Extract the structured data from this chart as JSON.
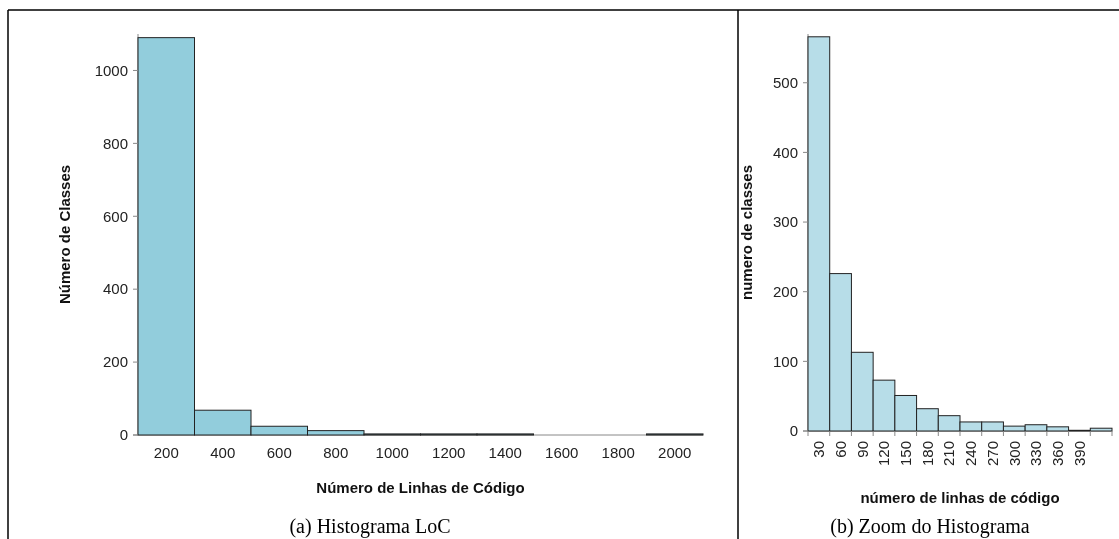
{
  "chart_data": [
    {
      "type": "bar",
      "title": "(a) Histograma LoC",
      "xlabel": "Número de Linhas de Código",
      "ylabel": "Número de Classes",
      "categories": [
        "200",
        "400",
        "600",
        "800",
        "1000",
        "1200",
        "1400",
        "1600",
        "1800",
        "2000"
      ],
      "values": [
        1090,
        68,
        24,
        12,
        3,
        3,
        3,
        0,
        0,
        3
      ],
      "color": "#92cddc",
      "ylim": [
        0,
        1100
      ],
      "yticks": [
        0,
        200,
        400,
        600,
        800,
        1000
      ],
      "grid": false
    },
    {
      "type": "bar",
      "title": "(b) Zoom do Histograma",
      "xlabel": "número de linhas de código",
      "ylabel": "numero de classes",
      "categories": [
        "30",
        "60",
        "90",
        "120",
        "150",
        "180",
        "210",
        "240",
        "270",
        "300",
        "330",
        "360",
        "390",
        null
      ],
      "values": [
        566,
        226,
        113,
        73,
        51,
        32,
        22,
        13,
        13,
        7,
        9,
        6,
        1,
        4
      ],
      "color": "#b7dde8",
      "ylim": [
        0,
        570
      ],
      "yticks": [
        0,
        100,
        200,
        300,
        400,
        500
      ],
      "grid": false
    }
  ]
}
